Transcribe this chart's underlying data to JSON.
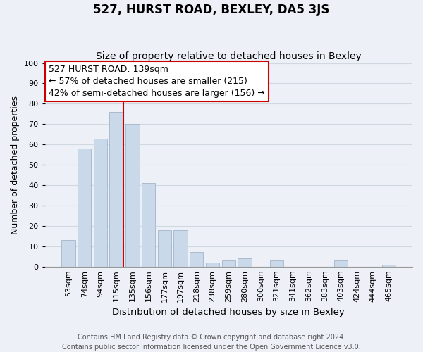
{
  "title": "527, HURST ROAD, BEXLEY, DA5 3JS",
  "subtitle": "Size of property relative to detached houses in Bexley",
  "xlabel": "Distribution of detached houses by size in Bexley",
  "ylabel": "Number of detached properties",
  "bar_labels": [
    "53sqm",
    "74sqm",
    "94sqm",
    "115sqm",
    "135sqm",
    "156sqm",
    "177sqm",
    "197sqm",
    "218sqm",
    "238sqm",
    "259sqm",
    "280sqm",
    "300sqm",
    "321sqm",
    "341sqm",
    "362sqm",
    "383sqm",
    "403sqm",
    "424sqm",
    "444sqm",
    "465sqm"
  ],
  "bar_values": [
    13,
    58,
    63,
    76,
    70,
    41,
    18,
    18,
    7,
    2,
    3,
    4,
    0,
    3,
    0,
    0,
    0,
    3,
    0,
    0,
    1
  ],
  "bar_color": "#c9d9ea",
  "bar_edge_color": "#aabbd0",
  "highlight_line_color": "#cc0000",
  "annotation_line1": "527 HURST ROAD: 139sqm",
  "annotation_line2": "← 57% of detached houses are smaller (215)",
  "annotation_line3": "42% of semi-detached houses are larger (156) →",
  "annotation_box_color": "#ffffff",
  "annotation_box_edge": "#cc0000",
  "ylim": [
    0,
    100
  ],
  "yticks": [
    0,
    10,
    20,
    30,
    40,
    50,
    60,
    70,
    80,
    90,
    100
  ],
  "grid_color": "#d0d8e0",
  "bg_color": "#edf1f7",
  "footer_text": "Contains HM Land Registry data © Crown copyright and database right 2024.\nContains public sector information licensed under the Open Government Licence v3.0.",
  "title_fontsize": 12,
  "subtitle_fontsize": 10,
  "xlabel_fontsize": 9.5,
  "ylabel_fontsize": 9,
  "tick_fontsize": 8,
  "annotation_fontsize": 9,
  "footer_fontsize": 7
}
